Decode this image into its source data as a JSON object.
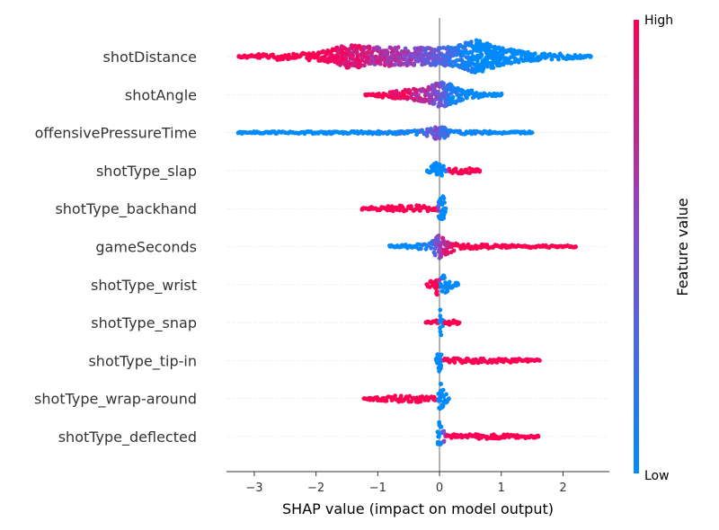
{
  "chart_data": {
    "type": "scatter",
    "subtype": "shap-beeswarm",
    "xlabel": "SHAP value (impact on model output)",
    "xlim": [
      -3.45,
      2.75
    ],
    "xticks": [
      -3,
      -2,
      -1,
      0,
      1,
      2
    ],
    "xtick_labels": [
      "−3",
      "−2",
      "−1",
      "0",
      "1",
      "2"
    ],
    "colorbar": {
      "label": "Feature value",
      "high_label": "High",
      "low_label": "Low",
      "low_color": "#008bfb",
      "high_color": "#ff0051"
    },
    "features": [
      {
        "name": "shotDistance",
        "range": [
          -3.25,
          2.45
        ],
        "profile": [
          {
            "x": -3.25,
            "w": 0.05,
            "c": 1.0
          },
          {
            "x": -2.9,
            "w": 0.18,
            "c": 1.0
          },
          {
            "x": -2.0,
            "w": 0.22,
            "c": 1.0
          },
          {
            "x": -1.5,
            "w": 0.7,
            "c": 0.9
          },
          {
            "x": -1.0,
            "w": 0.55,
            "c": 0.75
          },
          {
            "x": -0.5,
            "w": 0.55,
            "c": 0.6
          },
          {
            "x": 0.0,
            "w": 0.5,
            "c": 0.35
          },
          {
            "x": 0.3,
            "w": 0.65,
            "c": 0.15
          },
          {
            "x": 0.6,
            "w": 1.0,
            "c": 0.0
          },
          {
            "x": 1.0,
            "w": 0.5,
            "c": 0.0
          },
          {
            "x": 1.5,
            "w": 0.25,
            "c": 0.0
          },
          {
            "x": 2.0,
            "w": 0.16,
            "c": 0.0
          },
          {
            "x": 2.45,
            "w": 0.05,
            "c": 0.0
          }
        ]
      },
      {
        "name": "shotAngle",
        "range": [
          -1.2,
          1.0
        ],
        "profile": [
          {
            "x": -1.2,
            "w": 0.05,
            "c": 1.0
          },
          {
            "x": -0.9,
            "w": 0.18,
            "c": 1.0
          },
          {
            "x": -0.5,
            "w": 0.3,
            "c": 0.9
          },
          {
            "x": -0.2,
            "w": 0.45,
            "c": 0.7
          },
          {
            "x": 0.05,
            "w": 0.8,
            "c": 0.4
          },
          {
            "x": 0.2,
            "w": 0.6,
            "c": 0.1
          },
          {
            "x": 0.4,
            "w": 0.3,
            "c": 0.0
          },
          {
            "x": 0.7,
            "w": 0.15,
            "c": 0.0
          },
          {
            "x": 1.0,
            "w": 0.05,
            "c": 0.0
          }
        ]
      },
      {
        "name": "offensivePressureTime",
        "range": [
          -3.25,
          1.5
        ],
        "profile": [
          {
            "x": -3.25,
            "w": 0.05,
            "c": 0.0
          },
          {
            "x": -1.5,
            "w": 0.07,
            "c": 0.0
          },
          {
            "x": -0.45,
            "w": 0.09,
            "c": 0.05
          },
          {
            "x": -0.15,
            "w": 0.25,
            "c": 0.3
          },
          {
            "x": -0.05,
            "w": 0.5,
            "c": 0.55
          },
          {
            "x": 0.05,
            "w": 0.4,
            "c": 0.3
          },
          {
            "x": 0.2,
            "w": 0.09,
            "c": 0.05
          },
          {
            "x": 1.0,
            "w": 0.07,
            "c": 0.0
          },
          {
            "x": 1.5,
            "w": 0.05,
            "c": 0.0
          }
        ]
      },
      {
        "name": "shotType_slap",
        "range": [
          -0.2,
          0.65
        ],
        "profile": [
          {
            "x": -0.2,
            "w": 0.06,
            "c": 0.0
          },
          {
            "x": -0.05,
            "w": 0.5,
            "c": 0.0
          },
          {
            "x": 0.05,
            "w": 0.35,
            "c": 0.0
          },
          {
            "x": 0.1,
            "w": 0.08,
            "c": 0.0
          },
          {
            "x": 0.18,
            "w": 0.15,
            "c": 1.0
          },
          {
            "x": 0.35,
            "w": 0.22,
            "c": 1.0
          },
          {
            "x": 0.55,
            "w": 0.12,
            "c": 1.0
          },
          {
            "x": 0.65,
            "w": 0.05,
            "c": 1.0
          }
        ]
      },
      {
        "name": "shotType_backhand",
        "range": [
          -1.25,
          0.1
        ],
        "profile": [
          {
            "x": -1.25,
            "w": 0.05,
            "c": 1.0
          },
          {
            "x": -0.8,
            "w": 0.15,
            "c": 1.0
          },
          {
            "x": -0.4,
            "w": 0.2,
            "c": 1.0
          },
          {
            "x": -0.1,
            "w": 0.15,
            "c": 1.0
          },
          {
            "x": -0.05,
            "w": 0.05,
            "c": 1.0
          },
          {
            "x": 0.0,
            "w": 0.6,
            "c": 0.0
          },
          {
            "x": 0.06,
            "w": 0.9,
            "c": 0.0
          },
          {
            "x": 0.1,
            "w": 0.05,
            "c": 0.0
          }
        ]
      },
      {
        "name": "gameSeconds",
        "range": [
          -0.8,
          2.2
        ],
        "profile": [
          {
            "x": -0.8,
            "w": 0.05,
            "c": 0.0
          },
          {
            "x": -0.5,
            "w": 0.12,
            "c": 0.0
          },
          {
            "x": -0.15,
            "w": 0.2,
            "c": 0.1
          },
          {
            "x": 0.0,
            "w": 0.8,
            "c": 0.55
          },
          {
            "x": 0.1,
            "w": 0.5,
            "c": 0.8
          },
          {
            "x": 0.3,
            "w": 0.14,
            "c": 1.0
          },
          {
            "x": 1.0,
            "w": 0.1,
            "c": 1.0
          },
          {
            "x": 1.6,
            "w": 0.07,
            "c": 1.0
          },
          {
            "x": 2.2,
            "w": 0.04,
            "c": 1.0
          }
        ]
      },
      {
        "name": "shotType_wrist",
        "range": [
          -0.2,
          0.3
        ],
        "profile": [
          {
            "x": -0.2,
            "w": 0.1,
            "c": 1.0
          },
          {
            "x": -0.1,
            "w": 0.3,
            "c": 1.0
          },
          {
            "x": -0.04,
            "w": 0.75,
            "c": 1.0
          },
          {
            "x": -0.01,
            "w": 0.3,
            "c": 1.0
          },
          {
            "x": 0.02,
            "w": 0.35,
            "c": 0.0
          },
          {
            "x": 0.07,
            "w": 0.7,
            "c": 0.0
          },
          {
            "x": 0.15,
            "w": 0.3,
            "c": 0.0
          },
          {
            "x": 0.3,
            "w": 0.1,
            "c": 0.0
          }
        ]
      },
      {
        "name": "shotType_snap",
        "range": [
          -0.22,
          0.32
        ],
        "profile": [
          {
            "x": -0.22,
            "w": 0.06,
            "c": 1.0
          },
          {
            "x": -0.06,
            "w": 0.16,
            "c": 1.0
          },
          {
            "x": -0.02,
            "w": 0.06,
            "c": 1.0
          },
          {
            "x": -0.01,
            "w": 0.3,
            "c": 0.0
          },
          {
            "x": 0.02,
            "w": 0.75,
            "c": 0.0
          },
          {
            "x": 0.05,
            "w": 0.2,
            "c": 0.0
          },
          {
            "x": 0.08,
            "w": 0.06,
            "c": 1.0
          },
          {
            "x": 0.2,
            "w": 0.15,
            "c": 1.0
          },
          {
            "x": 0.32,
            "w": 0.05,
            "c": 1.0
          }
        ]
      },
      {
        "name": "shotType_tip-in",
        "range": [
          -0.05,
          1.62
        ],
        "profile": [
          {
            "x": -0.05,
            "w": 0.3,
            "c": 0.0
          },
          {
            "x": 0.0,
            "w": 0.9,
            "c": 0.0
          },
          {
            "x": 0.04,
            "w": 0.3,
            "c": 0.0
          },
          {
            "x": 0.08,
            "w": 0.12,
            "c": 1.0
          },
          {
            "x": 0.5,
            "w": 0.14,
            "c": 1.0
          },
          {
            "x": 1.2,
            "w": 0.12,
            "c": 1.0
          },
          {
            "x": 1.62,
            "w": 0.05,
            "c": 1.0
          }
        ]
      },
      {
        "name": "shotType_wrap-around",
        "range": [
          -1.22,
          0.15
        ],
        "profile": [
          {
            "x": -1.22,
            "w": 0.05,
            "c": 1.0
          },
          {
            "x": -0.8,
            "w": 0.18,
            "c": 1.0
          },
          {
            "x": -0.3,
            "w": 0.22,
            "c": 1.0
          },
          {
            "x": -0.05,
            "w": 0.1,
            "c": 1.0
          },
          {
            "x": -0.02,
            "w": 0.3,
            "c": 0.0
          },
          {
            "x": 0.02,
            "w": 0.9,
            "c": 0.0
          },
          {
            "x": 0.08,
            "w": 0.35,
            "c": 0.0
          },
          {
            "x": 0.15,
            "w": 0.1,
            "c": 0.0
          }
        ]
      },
      {
        "name": "shotType_deflected",
        "range": [
          -0.02,
          1.6
        ],
        "profile": [
          {
            "x": -0.02,
            "w": 0.5,
            "c": 0.0
          },
          {
            "x": 0.0,
            "w": 0.9,
            "c": 0.0
          },
          {
            "x": 0.03,
            "w": 0.45,
            "c": 0.0
          },
          {
            "x": 0.12,
            "w": 0.12,
            "c": 1.0
          },
          {
            "x": 0.8,
            "w": 0.14,
            "c": 1.0
          },
          {
            "x": 1.4,
            "w": 0.1,
            "c": 1.0
          },
          {
            "x": 1.6,
            "w": 0.05,
            "c": 1.0
          }
        ]
      }
    ]
  }
}
